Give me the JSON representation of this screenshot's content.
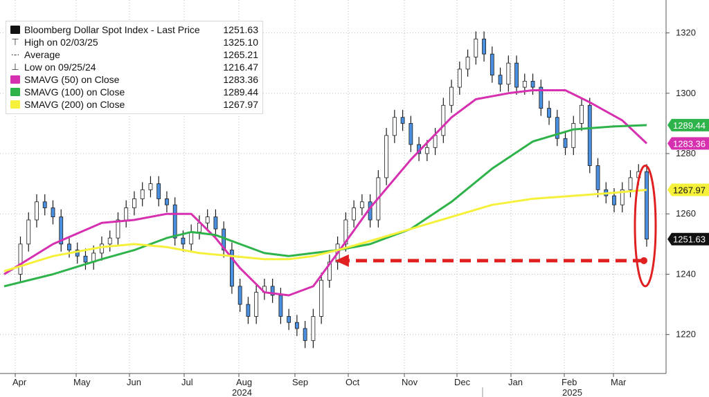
{
  "legend": {
    "items": [
      {
        "marker": "square",
        "color": "#111111",
        "label": "Bloomberg Dollar Spot Index - Last Price",
        "value": "1251.63"
      },
      {
        "marker": "high-icon",
        "color": "",
        "label": "High on 02/03/25",
        "value": "1325.10"
      },
      {
        "marker": "average-icon",
        "color": "",
        "label": "Average",
        "value": "1265.21"
      },
      {
        "marker": "low-icon",
        "color": "",
        "label": "Low on 09/25/24",
        "value": "1216.47"
      },
      {
        "marker": "square",
        "color": "#d62fb0",
        "label": "SMAVG (50)  on Close",
        "value": "1283.36"
      },
      {
        "marker": "square",
        "color": "#2db34a",
        "label": "SMAVG (100)  on Close",
        "value": "1289.44"
      },
      {
        "marker": "square",
        "color": "#f5f03a",
        "label": "SMAVG (200)  on Close",
        "value": "1267.97"
      }
    ]
  },
  "chart_data": {
    "type": "line",
    "title": "",
    "ylim": [
      1208,
      1330
    ],
    "y_ticks": [
      "1220",
      "1240",
      "1260",
      "1280",
      "1300",
      "1320"
    ],
    "x_month_labels": [
      "Apr",
      "May",
      "Jun",
      "Jul",
      "Aug",
      "Sep",
      "Oct",
      "Nov",
      "Dec",
      "Jan",
      "Feb",
      "Mar"
    ],
    "x_year_labels": [
      "2024",
      "2025"
    ],
    "grid": true,
    "series": [
      {
        "name": "Bloomberg Dollar Spot Index - Last Price",
        "color": "#4a8fe0",
        "points": [
          [
            0,
            1240
          ],
          [
            2,
            1250
          ],
          [
            3,
            1258
          ],
          [
            4,
            1264
          ],
          [
            5,
            1262
          ],
          [
            6,
            1259
          ],
          [
            7,
            1250
          ],
          [
            8,
            1248
          ],
          [
            9,
            1246
          ],
          [
            10,
            1244
          ],
          [
            11,
            1247
          ],
          [
            12,
            1250
          ],
          [
            13,
            1252
          ],
          [
            14,
            1258
          ],
          [
            15,
            1262
          ],
          [
            16,
            1265
          ],
          [
            17,
            1268
          ],
          [
            18,
            1270
          ],
          [
            19,
            1265
          ],
          [
            20,
            1263
          ],
          [
            21,
            1252
          ],
          [
            22,
            1250
          ],
          [
            23,
            1254
          ],
          [
            24,
            1257
          ],
          [
            25,
            1259
          ],
          [
            26,
            1255
          ],
          [
            27,
            1248
          ],
          [
            28,
            1236
          ],
          [
            29,
            1230
          ],
          [
            30,
            1226
          ],
          [
            31,
            1234
          ],
          [
            32,
            1236
          ],
          [
            33,
            1233
          ],
          [
            34,
            1226
          ],
          [
            35,
            1224
          ],
          [
            36,
            1222
          ],
          [
            37,
            1218
          ],
          [
            38,
            1226
          ],
          [
            39,
            1238
          ],
          [
            40,
            1244
          ],
          [
            41,
            1250
          ],
          [
            42,
            1258
          ],
          [
            43,
            1262
          ],
          [
            44,
            1264
          ],
          [
            45,
            1258
          ],
          [
            46,
            1272
          ],
          [
            47,
            1286
          ],
          [
            48,
            1292
          ],
          [
            49,
            1290
          ],
          [
            50,
            1283
          ],
          [
            51,
            1280
          ],
          [
            52,
            1282
          ],
          [
            53,
            1286
          ],
          [
            54,
            1296
          ],
          [
            55,
            1302
          ],
          [
            56,
            1308
          ],
          [
            57,
            1312
          ],
          [
            58,
            1318
          ],
          [
            59,
            1313
          ],
          [
            60,
            1306
          ],
          [
            61,
            1303
          ],
          [
            62,
            1310
          ],
          [
            63,
            1302
          ],
          [
            64,
            1304
          ],
          [
            65,
            1302
          ],
          [
            66,
            1295
          ],
          [
            67,
            1292
          ],
          [
            68,
            1285
          ],
          [
            69,
            1282
          ],
          [
            70,
            1290
          ],
          [
            71,
            1296
          ],
          [
            72,
            1276
          ],
          [
            73,
            1268
          ],
          [
            74,
            1266
          ],
          [
            75,
            1263
          ],
          [
            76,
            1268
          ],
          [
            77,
            1272
          ],
          [
            78,
            1274
          ],
          [
            79,
            1251.63
          ]
        ]
      },
      {
        "name": "SMAVG (50)  on Close",
        "color": "#d62fb0",
        "points": [
          [
            0,
            1240
          ],
          [
            6,
            1250
          ],
          [
            12,
            1257
          ],
          [
            16,
            1258
          ],
          [
            20,
            1260
          ],
          [
            23,
            1260
          ],
          [
            26,
            1252
          ],
          [
            29,
            1242
          ],
          [
            32,
            1234
          ],
          [
            35,
            1233
          ],
          [
            38,
            1236
          ],
          [
            41,
            1247
          ],
          [
            45,
            1262
          ],
          [
            50,
            1278
          ],
          [
            55,
            1292
          ],
          [
            58,
            1298
          ],
          [
            62,
            1300
          ],
          [
            65,
            1301
          ],
          [
            69,
            1301
          ],
          [
            72,
            1297
          ],
          [
            76,
            1291
          ],
          [
            79,
            1283.36
          ]
        ]
      },
      {
        "name": "SMAVG (100)  on Close",
        "color": "#2db34a",
        "points": [
          [
            0,
            1236
          ],
          [
            6,
            1240
          ],
          [
            12,
            1245
          ],
          [
            16,
            1248
          ],
          [
            20,
            1252
          ],
          [
            23,
            1254
          ],
          [
            26,
            1253
          ],
          [
            29,
            1250
          ],
          [
            32,
            1247
          ],
          [
            35,
            1246
          ],
          [
            38,
            1247
          ],
          [
            41,
            1248
          ],
          [
            45,
            1250
          ],
          [
            50,
            1255
          ],
          [
            55,
            1264
          ],
          [
            60,
            1275
          ],
          [
            65,
            1284
          ],
          [
            70,
            1288
          ],
          [
            75,
            1289
          ],
          [
            79,
            1289.44
          ]
        ]
      },
      {
        "name": "SMAVG (200)  on Close",
        "color": "#f5f03a",
        "points": [
          [
            0,
            1241
          ],
          [
            6,
            1246
          ],
          [
            12,
            1249
          ],
          [
            16,
            1250
          ],
          [
            20,
            1249
          ],
          [
            24,
            1247
          ],
          [
            28,
            1246
          ],
          [
            32,
            1245
          ],
          [
            35,
            1245
          ],
          [
            38,
            1246
          ],
          [
            41,
            1248
          ],
          [
            45,
            1251
          ],
          [
            50,
            1255
          ],
          [
            55,
            1259
          ],
          [
            60,
            1263
          ],
          [
            65,
            1265
          ],
          [
            70,
            1266
          ],
          [
            75,
            1267
          ],
          [
            79,
            1267.97
          ]
        ]
      }
    ],
    "last_value_tags": [
      {
        "value": 1289.44,
        "label": "1289.44",
        "bg": "#2db34a",
        "fg": "#ffffff"
      },
      {
        "value": 1283.36,
        "label": "1283.36",
        "bg": "#d62fb0",
        "fg": "#ffffff"
      },
      {
        "value": 1267.97,
        "label": "1267.97",
        "bg": "#f5f03a",
        "fg": "#111111"
      },
      {
        "value": 1251.63,
        "label": "1251.63",
        "bg": "#111111",
        "fg": "#ffffff"
      }
    ],
    "annotations": {
      "arrow_color": "#e02020",
      "arrow_level": 1244.5,
      "arrow_from_index": 79,
      "arrow_to_index": 40,
      "ellipse_index": 79,
      "ellipse_range": [
        1236,
        1276
      ]
    }
  }
}
